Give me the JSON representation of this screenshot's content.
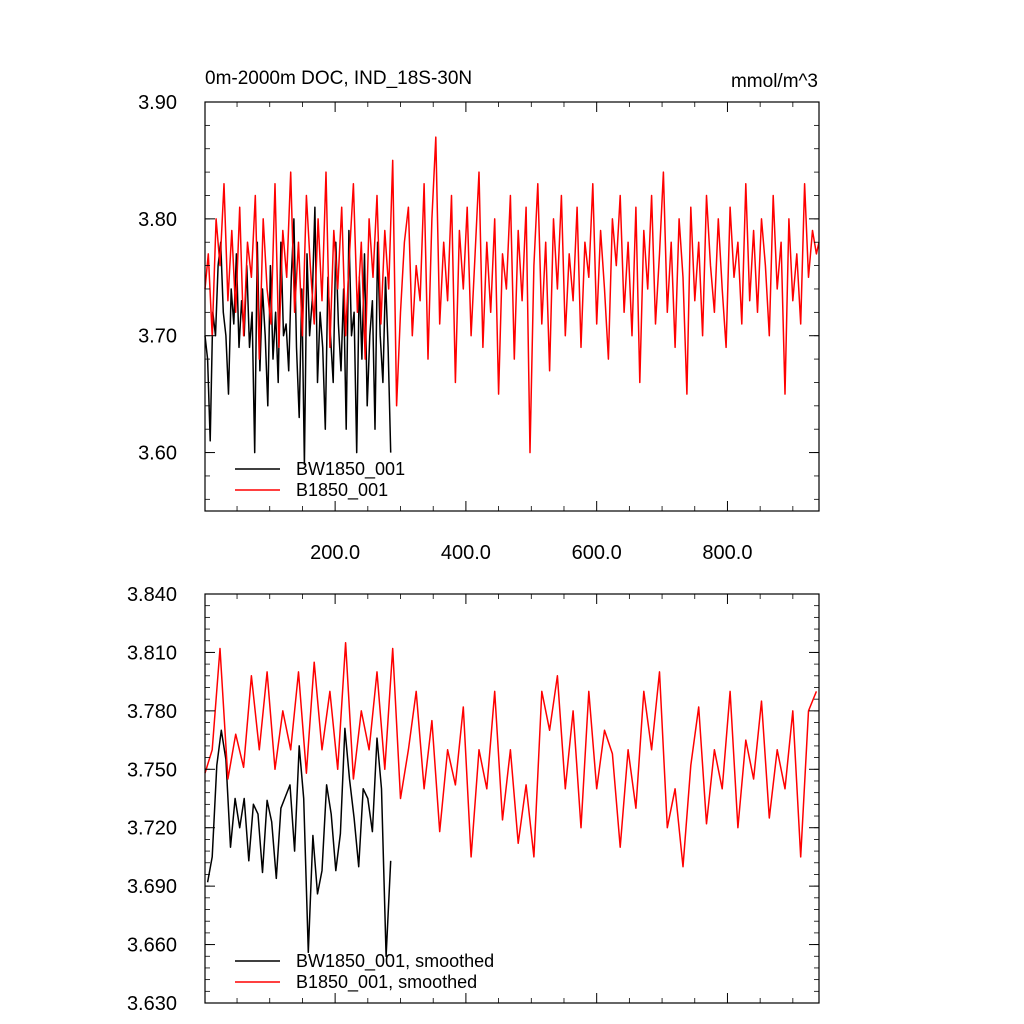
{
  "chart_data": [
    {
      "type": "line",
      "title": "0m-2000m DOC, IND_18S-30N",
      "units": "mmol/m^3",
      "xlim": [
        1,
        940
      ],
      "ylim": [
        3.55,
        3.9
      ],
      "xticks": [
        200,
        400,
        600,
        800
      ],
      "xtick_labels": [
        "200.0",
        "400.0",
        "600.0",
        "800.0"
      ],
      "yticks": [
        3.6,
        3.7,
        3.8,
        3.9
      ],
      "ytick_labels": [
        "3.60",
        "3.70",
        "3.80",
        "3.90"
      ],
      "legend_position": "bottom-left",
      "grid": false,
      "series": [
        {
          "name": "BW1850_001",
          "color": "#000000",
          "x": [
            1,
            5,
            9,
            13,
            17,
            21,
            25,
            29,
            33,
            37,
            41,
            45,
            49,
            53,
            57,
            61,
            65,
            69,
            73,
            77,
            81,
            85,
            89,
            93,
            97,
            101,
            105,
            109,
            113,
            117,
            121,
            125,
            129,
            133,
            137,
            141,
            145,
            149,
            153,
            157,
            161,
            165,
            169,
            173,
            177,
            181,
            185,
            189,
            193,
            197,
            201,
            205,
            209,
            213,
            217,
            221,
            225,
            229,
            233,
            237,
            241,
            245,
            249,
            253,
            257,
            261,
            265,
            269,
            273,
            277,
            281,
            285
          ],
          "y": [
            3.7,
            3.68,
            3.61,
            3.72,
            3.7,
            3.76,
            3.78,
            3.72,
            3.7,
            3.65,
            3.74,
            3.71,
            3.77,
            3.69,
            3.73,
            3.7,
            3.76,
            3.69,
            3.72,
            3.6,
            3.78,
            3.67,
            3.74,
            3.7,
            3.64,
            3.76,
            3.68,
            3.72,
            3.66,
            3.78,
            3.7,
            3.71,
            3.67,
            3.75,
            3.8,
            3.69,
            3.63,
            3.74,
            3.59,
            3.77,
            3.7,
            3.73,
            3.81,
            3.66,
            3.72,
            3.69,
            3.62,
            3.75,
            3.7,
            3.66,
            3.78,
            3.71,
            3.67,
            3.74,
            3.62,
            3.79,
            3.7,
            3.72,
            3.6,
            3.75,
            3.68,
            3.77,
            3.64,
            3.7,
            3.73,
            3.62,
            3.78,
            3.7,
            3.66,
            3.75,
            3.69,
            3.6
          ]
        },
        {
          "name": "B1850_001",
          "color": "#ff0000",
          "x": [
            1,
            6,
            12,
            18,
            24,
            30,
            36,
            42,
            48,
            54,
            60,
            66,
            72,
            78,
            84,
            90,
            96,
            102,
            108,
            114,
            120,
            126,
            132,
            138,
            144,
            150,
            156,
            162,
            168,
            174,
            180,
            186,
            192,
            198,
            204,
            210,
            216,
            222,
            228,
            234,
            240,
            246,
            252,
            258,
            264,
            270,
            276,
            282,
            288,
            294,
            300,
            306,
            312,
            318,
            324,
            330,
            336,
            342,
            348,
            354,
            360,
            366,
            372,
            378,
            384,
            390,
            396,
            402,
            408,
            414,
            420,
            426,
            432,
            438,
            444,
            450,
            456,
            462,
            468,
            474,
            480,
            486,
            492,
            498,
            504,
            510,
            516,
            522,
            528,
            534,
            540,
            546,
            552,
            558,
            564,
            570,
            576,
            582,
            588,
            594,
            600,
            606,
            612,
            618,
            624,
            630,
            636,
            642,
            648,
            654,
            660,
            666,
            672,
            678,
            684,
            690,
            696,
            702,
            708,
            714,
            720,
            726,
            732,
            738,
            744,
            750,
            756,
            762,
            768,
            774,
            780,
            786,
            792,
            798,
            804,
            810,
            816,
            822,
            828,
            834,
            840,
            846,
            852,
            858,
            864,
            870,
            876,
            882,
            888,
            894,
            900,
            906,
            912,
            918,
            924,
            930,
            936,
            940
          ],
          "y": [
            3.74,
            3.77,
            3.7,
            3.8,
            3.76,
            3.83,
            3.73,
            3.79,
            3.72,
            3.81,
            3.7,
            3.78,
            3.75,
            3.82,
            3.68,
            3.8,
            3.74,
            3.71,
            3.83,
            3.69,
            3.79,
            3.75,
            3.84,
            3.72,
            3.78,
            3.7,
            3.82,
            3.76,
            3.71,
            3.8,
            3.73,
            3.84,
            3.69,
            3.79,
            3.74,
            3.81,
            3.7,
            3.77,
            3.83,
            3.72,
            3.78,
            3.68,
            3.8,
            3.75,
            3.82,
            3.71,
            3.79,
            3.74,
            3.85,
            3.64,
            3.72,
            3.78,
            3.81,
            3.7,
            3.76,
            3.73,
            3.83,
            3.68,
            3.8,
            3.87,
            3.71,
            3.78,
            3.73,
            3.82,
            3.66,
            3.79,
            3.74,
            3.81,
            3.7,
            3.77,
            3.84,
            3.69,
            3.78,
            3.72,
            3.8,
            3.65,
            3.77,
            3.74,
            3.82,
            3.68,
            3.79,
            3.73,
            3.81,
            3.6,
            3.76,
            3.83,
            3.71,
            3.78,
            3.67,
            3.8,
            3.74,
            3.82,
            3.7,
            3.77,
            3.73,
            3.81,
            3.69,
            3.78,
            3.75,
            3.83,
            3.71,
            3.79,
            3.74,
            3.68,
            3.8,
            3.76,
            3.82,
            3.72,
            3.78,
            3.7,
            3.81,
            3.66,
            3.79,
            3.74,
            3.82,
            3.71,
            3.77,
            3.84,
            3.72,
            3.78,
            3.69,
            3.8,
            3.75,
            3.65,
            3.81,
            3.73,
            3.78,
            3.7,
            3.82,
            3.76,
            3.72,
            3.8,
            3.74,
            3.69,
            3.81,
            3.75,
            3.78,
            3.71,
            3.83,
            3.73,
            3.79,
            3.72,
            3.8,
            3.76,
            3.7,
            3.82,
            3.74,
            3.78,
            3.65,
            3.8,
            3.73,
            3.77,
            3.71,
            3.83,
            3.75,
            3.79,
            3.77,
            3.78
          ]
        }
      ]
    },
    {
      "type": "line",
      "xlim": [
        1,
        940
      ],
      "ylim": [
        3.63,
        3.84
      ],
      "xticks": [
        200,
        400,
        600,
        800
      ],
      "yticks": [
        3.63,
        3.66,
        3.69,
        3.72,
        3.75,
        3.78,
        3.81,
        3.84
      ],
      "ytick_labels": [
        "3.630",
        "3.660",
        "3.690",
        "3.720",
        "3.750",
        "3.780",
        "3.810",
        "3.840"
      ],
      "legend_position": "bottom-left",
      "grid": false,
      "series": [
        {
          "name": "BW1850_001, smoothed",
          "color": "#000000",
          "x": [
            5,
            12,
            19,
            26,
            33,
            40,
            47,
            54,
            61,
            68,
            75,
            82,
            89,
            96,
            103,
            110,
            117,
            124,
            131,
            138,
            145,
            152,
            159,
            166,
            173,
            180,
            187,
            194,
            201,
            208,
            215,
            222,
            229,
            236,
            243,
            250,
            257,
            264,
            271,
            278,
            285
          ],
          "y": [
            3.692,
            3.705,
            3.752,
            3.77,
            3.755,
            3.71,
            3.735,
            3.72,
            3.735,
            3.703,
            3.732,
            3.727,
            3.697,
            3.734,
            3.723,
            3.694,
            3.73,
            3.736,
            3.742,
            3.708,
            3.762,
            3.735,
            3.656,
            3.716,
            3.686,
            3.698,
            3.742,
            3.727,
            3.698,
            3.717,
            3.771,
            3.745,
            3.725,
            3.7,
            3.74,
            3.735,
            3.718,
            3.766,
            3.74,
            3.654,
            3.703
          ]
        },
        {
          "name": "B1850_001, smoothed",
          "color": "#ff0000",
          "x": [
            1,
            12,
            24,
            36,
            48,
            60,
            72,
            84,
            96,
            108,
            120,
            132,
            144,
            156,
            168,
            180,
            192,
            204,
            216,
            228,
            240,
            252,
            264,
            276,
            288,
            300,
            312,
            324,
            336,
            348,
            360,
            372,
            384,
            396,
            408,
            420,
            432,
            444,
            456,
            468,
            480,
            492,
            504,
            516,
            528,
            540,
            552,
            564,
            576,
            588,
            600,
            612,
            624,
            636,
            648,
            660,
            672,
            684,
            696,
            708,
            720,
            732,
            744,
            756,
            768,
            780,
            792,
            804,
            816,
            828,
            840,
            852,
            864,
            876,
            888,
            900,
            912,
            924,
            936
          ],
          "y": [
            3.748,
            3.76,
            3.812,
            3.745,
            3.768,
            3.751,
            3.798,
            3.76,
            3.8,
            3.75,
            3.78,
            3.76,
            3.8,
            3.748,
            3.805,
            3.76,
            3.79,
            3.75,
            3.815,
            3.745,
            3.78,
            3.76,
            3.8,
            3.75,
            3.812,
            3.735,
            3.76,
            3.79,
            3.74,
            3.775,
            3.718,
            3.76,
            3.742,
            3.782,
            3.705,
            3.76,
            3.74,
            3.79,
            3.724,
            3.76,
            3.712,
            3.742,
            3.705,
            3.79,
            3.77,
            3.798,
            3.74,
            3.78,
            3.72,
            3.79,
            3.74,
            3.77,
            3.758,
            3.71,
            3.76,
            3.73,
            3.79,
            3.76,
            3.8,
            3.72,
            3.74,
            3.7,
            3.752,
            3.782,
            3.722,
            3.76,
            3.74,
            3.79,
            3.72,
            3.765,
            3.745,
            3.785,
            3.725,
            3.76,
            3.74,
            3.78,
            3.705,
            3.78,
            3.79
          ]
        }
      ]
    }
  ]
}
